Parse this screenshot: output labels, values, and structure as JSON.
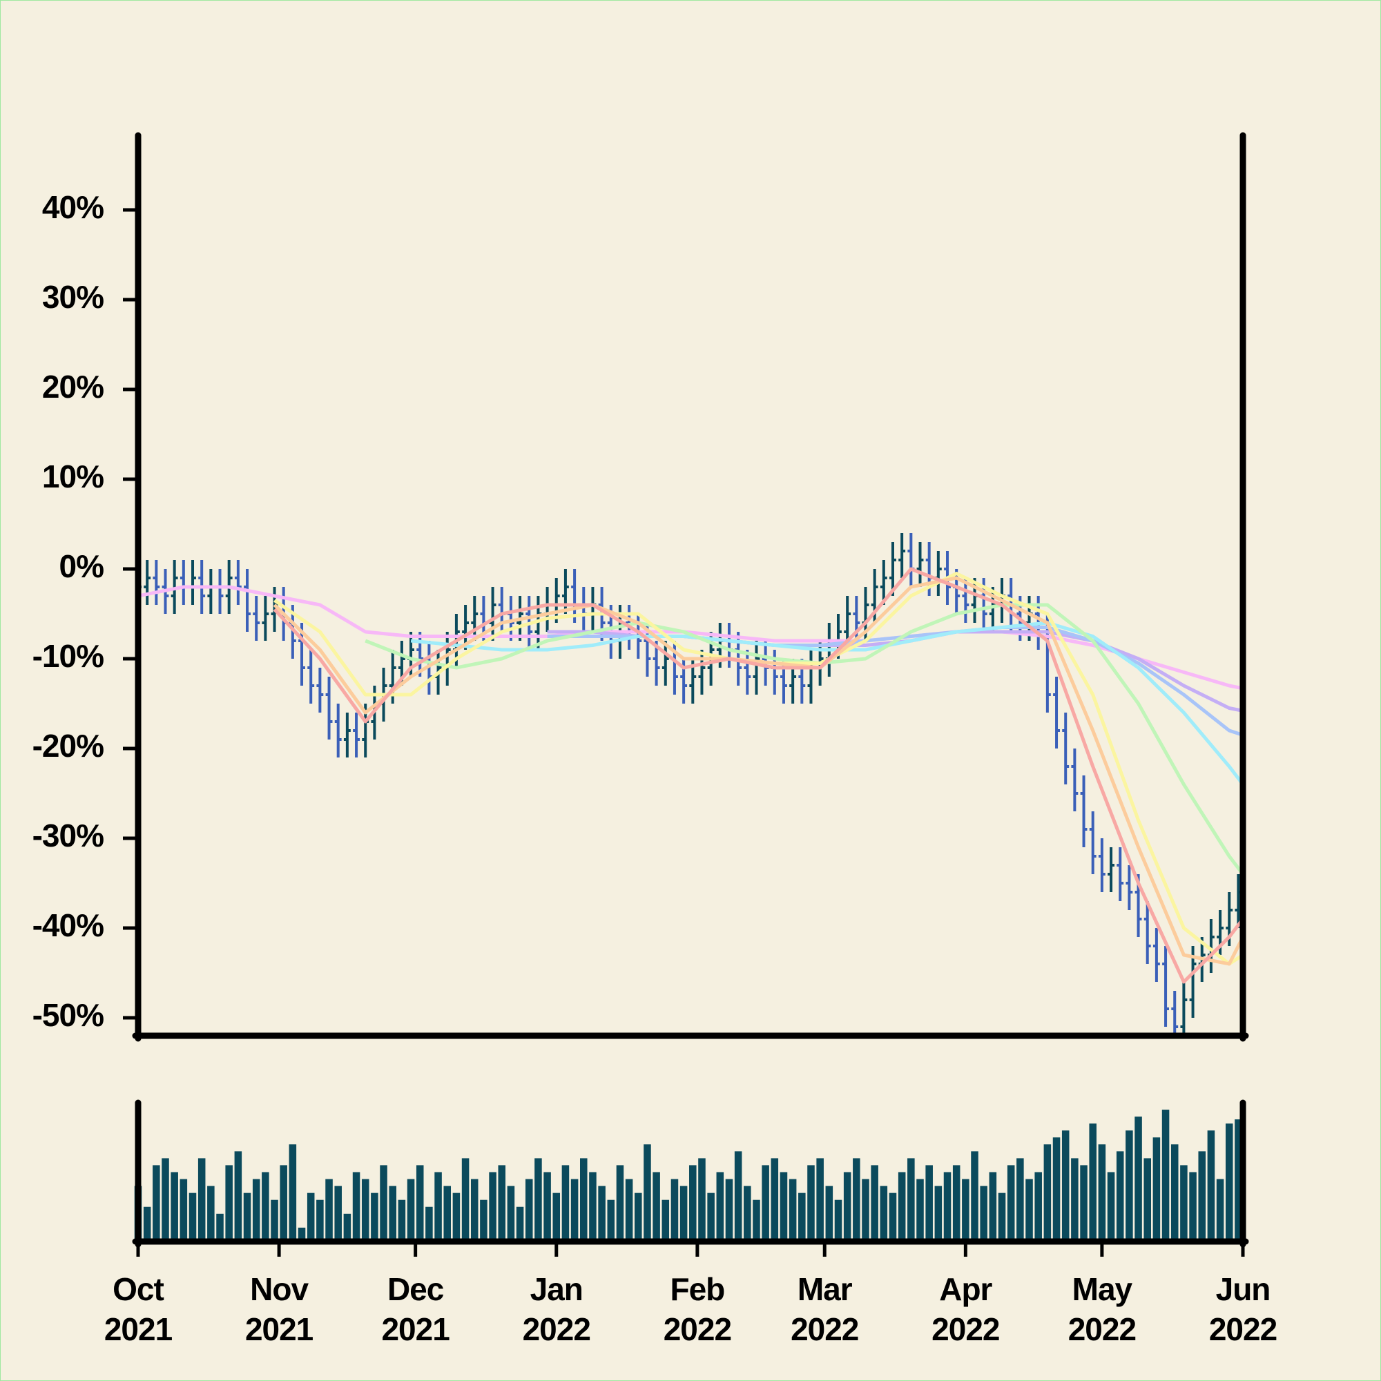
{
  "chart_data": [
    {
      "type": "ohlc",
      "x": [
        0,
        2,
        4,
        6,
        8,
        10,
        12,
        14,
        16,
        18,
        20,
        22,
        24,
        26,
        28,
        30,
        32,
        34,
        36,
        38,
        40,
        42,
        44,
        46,
        48,
        50,
        52,
        54,
        56,
        58,
        60,
        62,
        64,
        66,
        68,
        70,
        72,
        74,
        76,
        78,
        80,
        82,
        84,
        86,
        88,
        90,
        92,
        94,
        96,
        98,
        100,
        102,
        104,
        106,
        108,
        110,
        112,
        114,
        116,
        118,
        120,
        122,
        124,
        126,
        128,
        130,
        132,
        134,
        136,
        138,
        140,
        142,
        144,
        146,
        148,
        150,
        152,
        154,
        156,
        158,
        160,
        162,
        164,
        166,
        168,
        170,
        172,
        174,
        176,
        178,
        180,
        182,
        184,
        186,
        188,
        190,
        192,
        194,
        196,
        198,
        200,
        202,
        204,
        206,
        208,
        210,
        212,
        214,
        216,
        218,
        220,
        222,
        224,
        226,
        228,
        230,
        232,
        234,
        236,
        238,
        240,
        242
      ],
      "open": [
        -3,
        -2,
        -1,
        -2,
        -3,
        -1,
        -2,
        -1,
        -3,
        -2,
        -3,
        -1,
        -2,
        -5,
        -6,
        -5,
        -4,
        -6,
        -8,
        -11,
        -13,
        -14,
        -17,
        -19,
        -18,
        -19,
        -17,
        -15,
        -13,
        -11,
        -10,
        -9,
        -10,
        -12,
        -11,
        -9,
        -7,
        -6,
        -5,
        -6,
        -4,
        -5,
        -6,
        -5,
        -7,
        -5,
        -4,
        -3,
        -2,
        -4,
        -5,
        -4,
        -6,
        -8,
        -6,
        -7,
        -8,
        -10,
        -11,
        -10,
        -12,
        -13,
        -12,
        -11,
        -9,
        -8,
        -9,
        -11,
        -12,
        -10,
        -11,
        -12,
        -13,
        -12,
        -13,
        -11,
        -10,
        -8,
        -7,
        -5,
        -6,
        -4,
        -2,
        -1,
        1,
        2,
        0,
        1,
        -1,
        0,
        -2,
        -3,
        -4,
        -3,
        -5,
        -4,
        -3,
        -5,
        -6,
        -5,
        -7,
        -14,
        -18,
        -22,
        -25,
        -29,
        -32,
        -34,
        -33,
        -35,
        -36,
        -39,
        -42,
        -44,
        -49,
        -51,
        -48,
        -44,
        -43,
        -41,
        -40,
        -38
      ],
      "high": [
        0,
        1,
        1,
        0,
        1,
        1,
        1,
        1,
        0,
        0,
        1,
        1,
        0,
        -3,
        -3,
        -2,
        -2,
        -4,
        -6,
        -9,
        -11,
        -12,
        -15,
        -16,
        -16,
        -15,
        -13,
        -11,
        -9,
        -8,
        -7,
        -7,
        -8,
        -9,
        -7,
        -5,
        -4,
        -3,
        -3,
        -2,
        -2,
        -3,
        -3,
        -3,
        -3,
        -2,
        -1,
        0,
        0,
        -2,
        -2,
        -2,
        -4,
        -4,
        -4,
        -5,
        -6,
        -8,
        -8,
        -8,
        -10,
        -10,
        -9,
        -7,
        -6,
        -6,
        -7,
        -9,
        -8,
        -8,
        -9,
        -10,
        -10,
        -10,
        -9,
        -8,
        -6,
        -5,
        -3,
        -3,
        -2,
        0,
        1,
        3,
        4,
        4,
        3,
        3,
        2,
        2,
        0,
        -1,
        -1,
        -1,
        -2,
        -1,
        -1,
        -3,
        -3,
        -3,
        -5,
        -12,
        -16,
        -20,
        -23,
        -27,
        -30,
        -31,
        -31,
        -33,
        -34,
        -37,
        -40,
        -42,
        -47,
        -46,
        -42,
        -41,
        -39,
        -38,
        -36,
        -34
      ],
      "low": [
        -5,
        -4,
        -4,
        -5,
        -5,
        -4,
        -4,
        -5,
        -5,
        -5,
        -5,
        -4,
        -7,
        -8,
        -8,
        -7,
        -8,
        -10,
        -13,
        -15,
        -16,
        -19,
        -21,
        -21,
        -21,
        -21,
        -19,
        -17,
        -15,
        -13,
        -12,
        -12,
        -14,
        -14,
        -13,
        -11,
        -9,
        -8,
        -8,
        -8,
        -7,
        -8,
        -8,
        -9,
        -9,
        -7,
        -6,
        -5,
        -6,
        -7,
        -7,
        -8,
        -10,
        -10,
        -9,
        -10,
        -12,
        -13,
        -13,
        -14,
        -15,
        -15,
        -14,
        -13,
        -11,
        -11,
        -13,
        -14,
        -14,
        -13,
        -14,
        -15,
        -15,
        -15,
        -15,
        -13,
        -12,
        -10,
        -9,
        -8,
        -8,
        -6,
        -4,
        -3,
        -1,
        -2,
        -2,
        -3,
        -3,
        -4,
        -5,
        -6,
        -6,
        -7,
        -7,
        -6,
        -7,
        -8,
        -8,
        -9,
        -16,
        -20,
        -24,
        -27,
        -31,
        -34,
        -36,
        -36,
        -37,
        -38,
        -41,
        -44,
        -46,
        -51,
        -53,
        -53,
        -50,
        -46,
        -45,
        -43,
        -42,
        -40
      ],
      "close": [
        -2,
        -1,
        -2,
        -3,
        -1,
        -2,
        -1,
        -3,
        -2,
        -3,
        -1,
        -2,
        -5,
        -6,
        -5,
        -4,
        -6,
        -8,
        -11,
        -13,
        -14,
        -17,
        -19,
        -18,
        -19,
        -17,
        -15,
        -13,
        -11,
        -10,
        -9,
        -10,
        -12,
        -11,
        -9,
        -7,
        -6,
        -5,
        -6,
        -4,
        -5,
        -6,
        -5,
        -7,
        -5,
        -4,
        -3,
        -2,
        -4,
        -5,
        -4,
        -6,
        -8,
        -6,
        -7,
        -8,
        -10,
        -11,
        -10,
        -12,
        -13,
        -12,
        -11,
        -9,
        -8,
        -9,
        -11,
        -12,
        -10,
        -11,
        -12,
        -13,
        -12,
        -13,
        -11,
        -10,
        -8,
        -7,
        -5,
        -6,
        -4,
        -2,
        -1,
        1,
        2,
        0,
        1,
        -1,
        0,
        -2,
        -3,
        -4,
        -3,
        -5,
        -4,
        -3,
        -5,
        -6,
        -5,
        -7,
        -14,
        -18,
        -22,
        -25,
        -29,
        -32,
        -34,
        -33,
        -35,
        -36,
        -39,
        -42,
        -44,
        -49,
        -51,
        -48,
        -44,
        -43,
        -41,
        -40,
        -38,
        -36
      ],
      "up_color": "#0b4a5c",
      "down_color": "#3a5fb8",
      "moving_averages": {
        "x": [
          0,
          10,
          20,
          30,
          40,
          50,
          60,
          70,
          80,
          90,
          100,
          110,
          120,
          130,
          140,
          150,
          160,
          170,
          180,
          190,
          200,
          210,
          220,
          230,
          240,
          243
        ],
        "series": [
          {
            "color": "#f7b8f7",
            "values": [
              -3,
              -2,
              -2,
              -3,
              -4,
              -7,
              -7.5,
              -7.5,
              -7.5,
              -7.5,
              -7,
              -7,
              -7,
              -7.5,
              -8,
              -8,
              -8,
              -7.5,
              -7,
              -7,
              -7.5,
              -8.5,
              -10,
              -11.5,
              -13,
              -13.3
            ]
          },
          {
            "color": "#c4aef5",
            "values": [
              null,
              null,
              null,
              null,
              null,
              null,
              null,
              null,
              null,
              -7,
              -7,
              -7.5,
              -7.5,
              -8,
              -8.5,
              -8.5,
              -8.5,
              -8,
              -7,
              -7,
              -7,
              -8,
              -10,
              -13,
              -15.5,
              -15.8
            ]
          },
          {
            "color": "#a8c4f8",
            "values": [
              null,
              null,
              null,
              null,
              null,
              null,
              null,
              null,
              null,
              -7.5,
              -7.5,
              -7.5,
              -7.5,
              -8,
              -8.5,
              -8.5,
              -8,
              -7.5,
              -7,
              -6.5,
              -6.5,
              -8,
              -10.5,
              -14,
              -18,
              -18.5
            ]
          },
          {
            "color": "#a0ecfa",
            "values": [
              null,
              null,
              null,
              null,
              null,
              null,
              -8,
              -8.5,
              -9,
              -9,
              -8.5,
              -7.5,
              -7.5,
              -8,
              -8.5,
              -9,
              -9,
              -8,
              -7,
              -6.5,
              -6,
              -7.5,
              -11,
              -16,
              -22,
              -24
            ]
          },
          {
            "color": "#c0f5b8",
            "values": [
              null,
              null,
              null,
              null,
              null,
              -8,
              -10,
              -11,
              -10,
              -8,
              -7,
              -6,
              -7,
              -9,
              -10,
              -10.5,
              -10,
              -7,
              -5,
              -4,
              -4,
              -8,
              -15,
              -24,
              -32,
              -34
            ]
          },
          {
            "color": "#fbf5a0",
            "values": [
              null,
              null,
              null,
              -3.5,
              -7,
              -14,
              -14,
              -10,
              -7,
              -5.5,
              -5,
              -5,
              -9,
              -10,
              -10.5,
              -10.5,
              -8,
              -3,
              -0.5,
              -3,
              -5,
              -14,
              -28,
              -40,
              -44,
              -43
            ]
          },
          {
            "color": "#fccc9c",
            "values": [
              null,
              null,
              null,
              -4,
              -9,
              -16,
              -12,
              -9,
              -6,
              -5,
              -4,
              -6,
              -10,
              -10,
              -10.5,
              -11,
              -7,
              -2,
              -1,
              -3.5,
              -6,
              -18,
              -31,
              -43,
              -44,
              -41
            ]
          },
          {
            "color": "#f8a8a4",
            "values": [
              null,
              null,
              null,
              -4.5,
              -10,
              -17,
              -11,
              -8,
              -5,
              -4,
              -4,
              -7,
              -11,
              -10,
              -11,
              -11,
              -6,
              0,
              -2,
              -4,
              -8,
              -22,
              -35,
              -46,
              -41,
              -39
            ]
          }
        ]
      },
      "xlim": [
        0,
        243
      ],
      "ylim": [
        -52,
        48
      ],
      "yticks": [
        {
          "value": 40,
          "label": "40%"
        },
        {
          "value": 30,
          "label": "30%"
        },
        {
          "value": 20,
          "label": "20%"
        },
        {
          "value": 10,
          "label": "10%"
        },
        {
          "value": 0,
          "label": "0%"
        },
        {
          "value": -10,
          "label": "-10%"
        },
        {
          "value": -20,
          "label": "-20%"
        },
        {
          "value": -30,
          "label": "-30%"
        },
        {
          "value": -40,
          "label": "-40%"
        },
        {
          "value": -50,
          "label": "-50%"
        }
      ]
    },
    {
      "type": "bar",
      "x": [
        0,
        2,
        4,
        6,
        8,
        10,
        12,
        14,
        16,
        18,
        20,
        22,
        24,
        26,
        28,
        30,
        32,
        34,
        36,
        38,
        40,
        42,
        44,
        46,
        48,
        50,
        52,
        54,
        56,
        58,
        60,
        62,
        64,
        66,
        68,
        70,
        72,
        74,
        76,
        78,
        80,
        82,
        84,
        86,
        88,
        90,
        92,
        94,
        96,
        98,
        100,
        102,
        104,
        106,
        108,
        110,
        112,
        114,
        116,
        118,
        120,
        122,
        124,
        126,
        128,
        130,
        132,
        134,
        136,
        138,
        140,
        142,
        144,
        146,
        148,
        150,
        152,
        154,
        156,
        158,
        160,
        162,
        164,
        166,
        168,
        170,
        172,
        174,
        176,
        178,
        180,
        182,
        184,
        186,
        188,
        190,
        192,
        194,
        196,
        198,
        200,
        202,
        204,
        206,
        208,
        210,
        212,
        214,
        216,
        218,
        220,
        222,
        224,
        226,
        228,
        230,
        232,
        234,
        236,
        238,
        240,
        242
      ],
      "values": [
        40,
        25,
        55,
        60,
        50,
        45,
        35,
        60,
        40,
        20,
        55,
        65,
        35,
        45,
        50,
        30,
        55,
        70,
        10,
        35,
        30,
        45,
        40,
        20,
        50,
        45,
        35,
        55,
        40,
        30,
        45,
        55,
        25,
        50,
        40,
        35,
        60,
        45,
        30,
        50,
        55,
        40,
        25,
        45,
        60,
        50,
        35,
        55,
        45,
        60,
        50,
        40,
        30,
        55,
        45,
        35,
        70,
        50,
        30,
        45,
        40,
        55,
        60,
        35,
        50,
        45,
        65,
        40,
        30,
        55,
        60,
        50,
        45,
        35,
        55,
        60,
        40,
        30,
        50,
        60,
        45,
        55,
        40,
        35,
        50,
        60,
        45,
        55,
        40,
        50,
        55,
        45,
        65,
        40,
        50,
        35,
        55,
        60,
        45,
        50,
        70,
        75,
        80,
        60,
        55,
        85,
        70,
        50,
        65,
        80,
        90,
        60,
        75,
        95,
        70,
        55,
        50,
        65,
        80,
        45,
        85,
        88
      ],
      "color": "#0b4a5c",
      "xlim": [
        0,
        243
      ],
      "ylim": [
        0,
        100
      ],
      "xticks": [
        {
          "value": 0,
          "label": "Oct\n2021"
        },
        {
          "value": 31,
          "label": "Nov\n2021"
        },
        {
          "value": 61,
          "label": "Dec\n2021"
        },
        {
          "value": 92,
          "label": "Jan\n2022"
        },
        {
          "value": 123,
          "label": "Feb\n2022"
        },
        {
          "value": 151,
          "label": "Mar\n2022"
        },
        {
          "value": 182,
          "label": "Apr\n2022"
        },
        {
          "value": 212,
          "label": "May\n2022"
        },
        {
          "value": 243,
          "label": "Jun\n2022"
        }
      ]
    }
  ]
}
